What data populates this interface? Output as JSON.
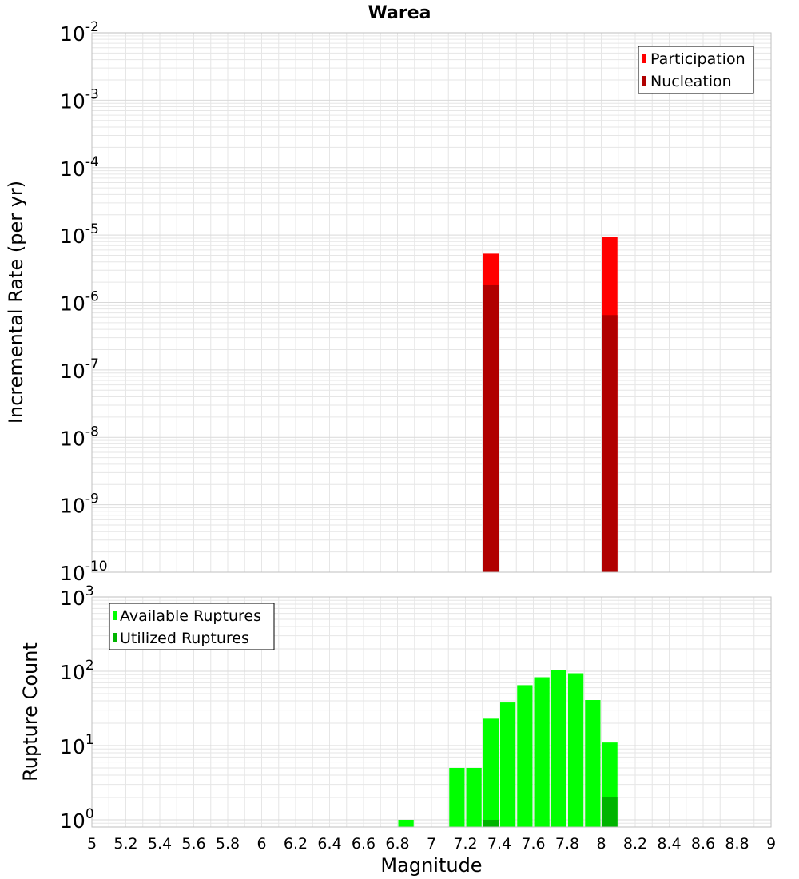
{
  "title": "Warea",
  "xlabel": "Magnitude",
  "colors": {
    "participation": "#ff0000",
    "nucleation": "#b00000",
    "available": "#00ff00",
    "utilized": "#00b400",
    "grid": "#e6e6e6",
    "frame": "#bfbfbf"
  },
  "chart_data": [
    {
      "type": "bar",
      "title": "Warea",
      "xlabel": "",
      "ylabel": "Incremental Rate (per yr)",
      "yscale": "log",
      "xlim": [
        5,
        9
      ],
      "ylim": [
        1e-10,
        0.01
      ],
      "grid": true,
      "legend_position": "top-right",
      "bar_width": 0.1,
      "y_tick_labels": [
        {
          "base": "10",
          "exp": "-10"
        },
        {
          "base": "10",
          "exp": "-9"
        },
        {
          "base": "10",
          "exp": "-8"
        },
        {
          "base": "10",
          "exp": "-7"
        },
        {
          "base": "10",
          "exp": "-6"
        },
        {
          "base": "10",
          "exp": "-5"
        },
        {
          "base": "10",
          "exp": "-4"
        },
        {
          "base": "10",
          "exp": "-3"
        },
        {
          "base": "10",
          "exp": "-2"
        }
      ],
      "series": [
        {
          "name": "Participation",
          "x": [
            7.35,
            8.05
          ],
          "values": [
            5.3e-06,
            9.5e-06
          ]
        },
        {
          "name": "Nucleation",
          "x": [
            7.35,
            8.05
          ],
          "values": [
            1.8e-06,
            6.5e-07
          ]
        }
      ]
    },
    {
      "type": "bar",
      "xlabel": "Magnitude",
      "ylabel": "Rupture Count",
      "yscale": "log",
      "xlim": [
        5,
        9
      ],
      "ylim": [
        0.8,
        1000
      ],
      "grid": true,
      "legend_position": "top-left",
      "bar_width": 0.1,
      "x_ticks": [
        "5",
        "5.2",
        "5.4",
        "5.6",
        "5.8",
        "6",
        "6.2",
        "6.4",
        "6.6",
        "6.8",
        "7",
        "7.2",
        "7.4",
        "7.6",
        "7.8",
        "8",
        "8.2",
        "8.4",
        "8.6",
        "8.8",
        "9"
      ],
      "y_tick_labels": [
        {
          "base": "10",
          "exp": "0"
        },
        {
          "base": "10",
          "exp": "1"
        },
        {
          "base": "10",
          "exp": "2"
        },
        {
          "base": "10",
          "exp": "3"
        }
      ],
      "series": [
        {
          "name": "Available Ruptures",
          "x": [
            6.85,
            7.15,
            7.25,
            7.35,
            7.45,
            7.55,
            7.65,
            7.75,
            7.85,
            7.95,
            8.05
          ],
          "values": [
            1,
            5,
            5,
            23,
            38,
            65,
            83,
            105,
            94,
            41,
            11
          ]
        },
        {
          "name": "Utilized Ruptures",
          "x": [
            7.35,
            8.05
          ],
          "values": [
            1,
            2
          ]
        }
      ]
    }
  ]
}
